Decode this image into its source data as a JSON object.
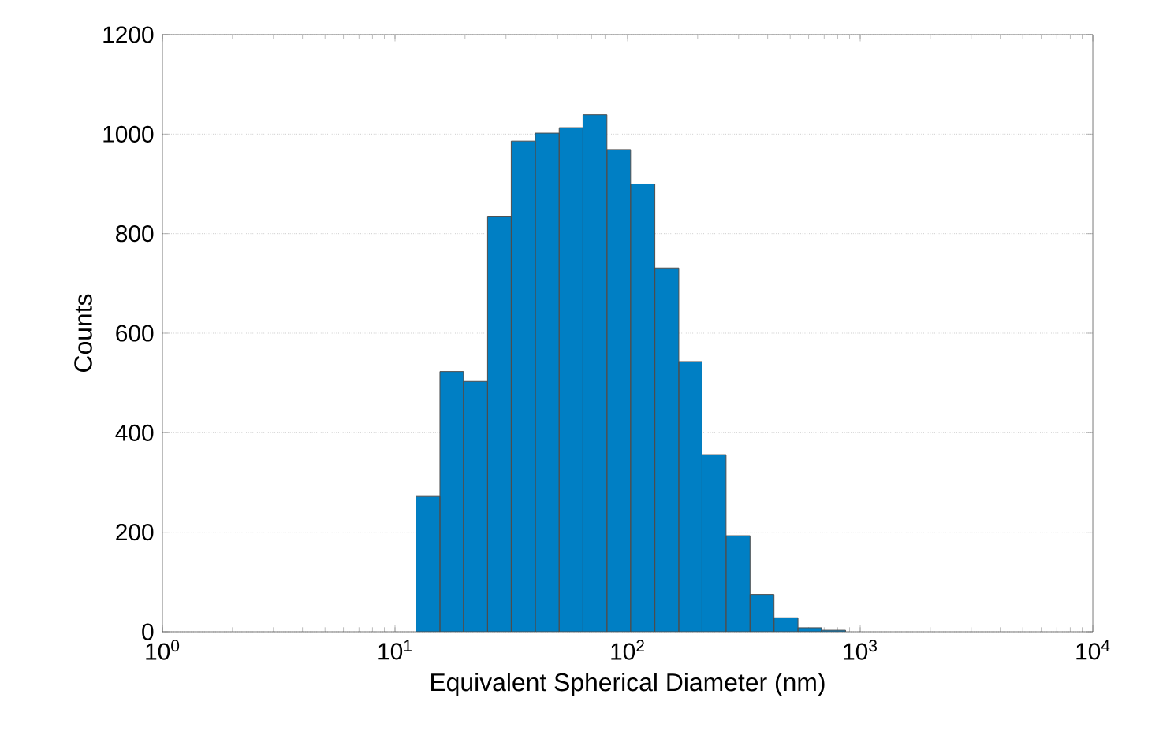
{
  "chart_data": {
    "type": "histogram",
    "xlabel": "Equivalent Spherical Diameter (nm)",
    "ylabel": "Counts",
    "log": "x",
    "grid": "y",
    "color": "#007fc4",
    "bins": [
      12.3,
      15.6,
      19.7,
      25.0,
      31.6,
      40.1,
      50.8,
      64.3,
      81.5,
      103,
      131,
      166,
      209,
      265,
      336,
      426,
      540,
      682,
      865
    ],
    "values": [
      272,
      523,
      503,
      835,
      986,
      1002,
      1013,
      1039,
      969,
      900,
      731,
      543,
      356,
      193,
      75,
      28,
      8,
      3
    ],
    "xlim": [
      1,
      10000
    ],
    "xticks": [
      {
        "value": 1,
        "label": "10$^{0}$"
      },
      {
        "value": 10,
        "label": "10$^{1}$"
      },
      {
        "value": 100,
        "label": "10$^{2}$"
      },
      {
        "value": 1000,
        "label": "10$^{3}$"
      },
      {
        "value": 10000,
        "label": "10$^{4}$"
      }
    ],
    "ylim": [
      0,
      1200
    ],
    "yticks": [
      0,
      200,
      400,
      600,
      800,
      1000,
      1200
    ]
  }
}
